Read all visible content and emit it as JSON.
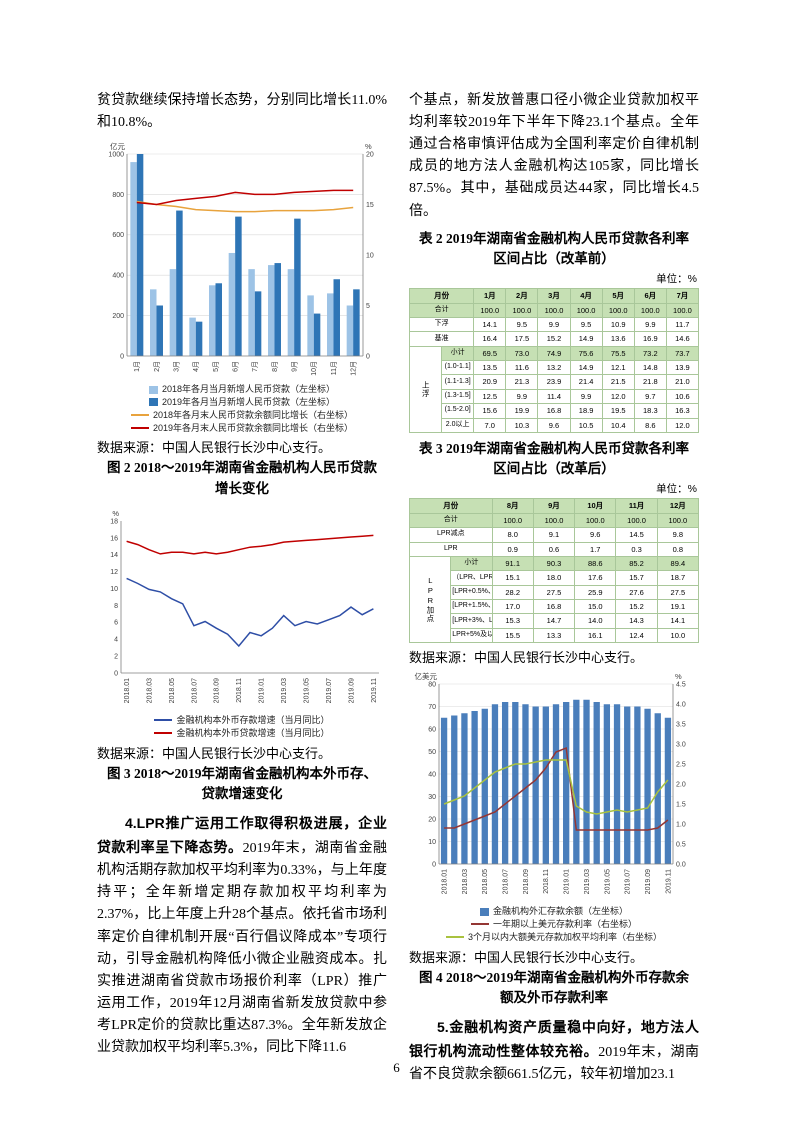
{
  "page_number": "6",
  "source_note": "数据来源：中国人民银行长沙中心支行。",
  "left": {
    "para_continued": "贫贷款继续保持增长态势，分别同比增长11.0%和10.8%。",
    "fig2_caption": "图 2  2018～2019年湖南省金融机构人民币贷款增长变化",
    "fig3_caption": "图 3  2018～2019年湖南省金融机构本外币存、贷款增速变化",
    "para4_lead": "4.LPR推广运用工作取得积极进展，企业贷款利率呈下降态势。",
    "para4_rest": "2019年末，湖南省金融机构活期存款加权平均利率为0.33%，与上年度持平；全年新增定期存款加权平均利率为2.37%，比上年度上升28个基点。依托省市场利率定价自律机制开展“百行倡议降成本”专项行动，引导金融机构降低小微企业融资成本。扎实推进湖南省贷款市场报价利率（LPR）推广运用工作，2019年12月湖南省新发放贷款中参考LPR定价的贷款比重达87.3%。全年新发放企业贷款加权平均利率5.3%，同比下降11.6"
  },
  "right": {
    "para_continued": "个基点，新发放普惠口径小微企业贷款加权平均利率较2019年下半年下降23.1个基点。全年通过合格审慎评估成为全国利率定价自律机制成员的地方法人金融机构达105家，同比增长87.5%。其中，基础成员达44家，同比增长4.5倍。",
    "fig4_caption": "图 4  2018～2019年湖南省金融机构外币存款余额及外币存款利率",
    "para5_lead": "5.金融机构资产质量稳中向好，地方法人银行机构流动性整体较充裕。",
    "para5_rest": "2019年末，湖南省不良贷款余额661.5亿元，较年初增加23.1"
  },
  "tables": {
    "table2": {
      "id": "table-rate-ranges-pre-reform",
      "title": "表 2  2019年湖南省金融机构人民币贷款各利率区间占比（改革前）",
      "unit": "单位：%",
      "header": [
        "月份",
        "1月",
        "2月",
        "3月",
        "4月",
        "5月",
        "6月",
        "7月"
      ],
      "rows": [
        {
          "label": "合计",
          "hl": true,
          "values": [
            "100.0",
            "100.0",
            "100.0",
            "100.0",
            "100.0",
            "100.0",
            "100.0"
          ]
        },
        {
          "label": "下浮",
          "values": [
            "14.1",
            "9.5",
            "9.9",
            "9.5",
            "10.9",
            "9.9",
            "11.7"
          ]
        },
        {
          "label": "基准",
          "values": [
            "16.4",
            "17.5",
            "15.2",
            "14.9",
            "13.6",
            "16.9",
            "14.6"
          ]
        },
        {
          "label": "小计",
          "hl": true,
          "group": "上浮",
          "group_span": 6,
          "values": [
            "69.5",
            "73.0",
            "74.9",
            "75.6",
            "75.5",
            "73.2",
            "73.7"
          ]
        },
        {
          "label": "(1.0-1.1]",
          "in_group": true,
          "values": [
            "13.5",
            "11.6",
            "13.2",
            "14.9",
            "12.1",
            "14.8",
            "13.9"
          ]
        },
        {
          "label": "(1.1-1.3]",
          "in_group": true,
          "values": [
            "20.9",
            "21.3",
            "23.9",
            "21.4",
            "21.5",
            "21.8",
            "21.0"
          ]
        },
        {
          "label": "(1.3-1.5]",
          "in_group": true,
          "values": [
            "12.5",
            "9.9",
            "11.4",
            "9.9",
            "12.0",
            "9.7",
            "10.6"
          ]
        },
        {
          "label": "(1.5-2.0]",
          "in_group": true,
          "values": [
            "15.6",
            "19.9",
            "16.8",
            "18.9",
            "19.5",
            "18.3",
            "16.3"
          ]
        },
        {
          "label": "2.0以上",
          "in_group": true,
          "values": [
            "7.0",
            "10.3",
            "9.6",
            "10.5",
            "10.4",
            "8.6",
            "12.0"
          ]
        }
      ]
    },
    "table3": {
      "id": "table-rate-ranges-post-reform",
      "title": "表 3  2019年湖南省金融机构人民币贷款各利率区间占比（改革后）",
      "unit": "单位：%",
      "header": [
        "月份",
        "8月",
        "9月",
        "10月",
        "11月",
        "12月"
      ],
      "rows": [
        {
          "label": "合计",
          "hl": true,
          "values": [
            "100.0",
            "100.0",
            "100.0",
            "100.0",
            "100.0"
          ]
        },
        {
          "label": "LPR减点",
          "values": [
            "8.0",
            "9.1",
            "9.6",
            "14.5",
            "9.8"
          ]
        },
        {
          "label": "LPR",
          "values": [
            "0.9",
            "0.6",
            "1.7",
            "0.3",
            "0.8"
          ]
        },
        {
          "label": "小计",
          "hl": true,
          "group": "LPR加点",
          "group_span": 6,
          "values": [
            "91.1",
            "90.3",
            "88.6",
            "85.2",
            "89.4"
          ]
        },
        {
          "label": "（LPR、LPR+0.5%]",
          "in_group": true,
          "values": [
            "15.1",
            "18.0",
            "17.6",
            "15.7",
            "18.7"
          ]
        },
        {
          "label": "[LPR+0.5%、LPR+1.5%)",
          "in_group": true,
          "values": [
            "28.2",
            "27.5",
            "25.9",
            "27.6",
            "27.5"
          ]
        },
        {
          "label": "[LPR+1.5%、LPR+3%)",
          "in_group": true,
          "values": [
            "17.0",
            "16.8",
            "15.0",
            "15.2",
            "19.1"
          ]
        },
        {
          "label": "[LPR+3%、LPR+5%)",
          "in_group": true,
          "values": [
            "15.3",
            "14.7",
            "14.0",
            "14.3",
            "14.1"
          ]
        },
        {
          "label": "LPR+5%及以上",
          "in_group": true,
          "values": [
            "15.5",
            "13.3",
            "16.1",
            "12.4",
            "10.0"
          ]
        }
      ]
    }
  },
  "chart_data": [
    {
      "id": "fig2",
      "type": "bar",
      "title": "2018～2019年湖南省金融机构人民币贷款增长变化",
      "grid": true,
      "categories": [
        "1月",
        "2月",
        "3月",
        "4月",
        "5月",
        "6月",
        "7月",
        "8月",
        "9月",
        "10月",
        "11月",
        "12月"
      ],
      "label_every": 1,
      "left_axis": {
        "label": "亿元",
        "min": 0,
        "max": 1000,
        "step": 200
      },
      "right_axis": {
        "label": "%",
        "min": 0,
        "max": 20,
        "step": 5
      },
      "bar_series": [
        {
          "name": "2018年各月当月新增人民币贷款（左坐标）",
          "color": "#9dc3e6",
          "values": [
            960,
            330,
            430,
            190,
            350,
            510,
            430,
            450,
            430,
            300,
            310,
            250
          ]
        },
        {
          "name": "2019年各月当月新增人民币贷款（左坐标）",
          "color": "#2e75b6",
          "values": [
            1000,
            250,
            720,
            170,
            360,
            690,
            320,
            460,
            680,
            210,
            380,
            330
          ]
        }
      ],
      "line_series": [
        {
          "name": "2018年各月末人民币贷款余额同比增长（右坐标）",
          "color": "#e8a33d",
          "values": [
            15.3,
            15.0,
            14.8,
            14.5,
            14.4,
            14.3,
            14.3,
            14.4,
            14.4,
            14.4,
            14.5,
            14.7
          ]
        },
        {
          "name": "2019年各月末人民币贷款余额同比增长（右坐标）",
          "color": "#c00000",
          "values": [
            15.2,
            15.0,
            15.4,
            15.6,
            15.8,
            16.2,
            16.0,
            16.0,
            16.2,
            16.3,
            16.4,
            16.4
          ]
        }
      ]
    },
    {
      "id": "fig3",
      "type": "line",
      "title": "2018～2019年湖南省金融机构本外币存、贷款增速变化",
      "grid": false,
      "categories": [
        "2018.01",
        "2018.02",
        "2018.03",
        "2018.04",
        "2018.05",
        "2018.06",
        "2018.07",
        "2018.08",
        "2018.09",
        "2018.10",
        "2018.11",
        "2018.12",
        "2019.01",
        "2019.02",
        "2019.03",
        "2019.04",
        "2019.05",
        "2019.06",
        "2019.07",
        "2019.08",
        "2019.09",
        "2019.10",
        "2019.11"
      ],
      "label_every": 2,
      "left_axis": {
        "label": "%",
        "min": 0,
        "max": 18,
        "step": 2
      },
      "right_axis": null,
      "bar_series": [],
      "line_series": [
        {
          "name": "金融机构本外币存款增速（当月同比）",
          "color": "#2e4ea6",
          "values": [
            11.2,
            10.6,
            9.9,
            9.6,
            8.8,
            8.2,
            5.6,
            6.1,
            5.3,
            4.6,
            3.2,
            4.8,
            4.4,
            5.3,
            6.8,
            5.6,
            6.1,
            5.8,
            6.3,
            6.8,
            7.8,
            6.9,
            7.6
          ]
        },
        {
          "name": "金融机构本外币贷款增速（当月同比）",
          "color": "#c00000",
          "values": [
            15.6,
            15.2,
            14.6,
            14.1,
            14.3,
            14.3,
            14.1,
            14.3,
            14.1,
            14.3,
            14.6,
            14.9,
            15.0,
            15.2,
            15.5,
            15.6,
            15.7,
            15.8,
            15.9,
            16.0,
            16.1,
            16.2,
            16.3
          ]
        }
      ]
    },
    {
      "id": "fig4",
      "type": "bar",
      "title": "2018～2019年湖南省金融机构外币存款余额及外币存款利率",
      "grid": true,
      "categories": [
        "2018.01",
        "2018.02",
        "2018.03",
        "2018.04",
        "2018.05",
        "2018.06",
        "2018.07",
        "2018.08",
        "2018.09",
        "2018.10",
        "2018.11",
        "2018.12",
        "2019.01",
        "2019.02",
        "2019.03",
        "2019.04",
        "2019.05",
        "2019.06",
        "2019.07",
        "2019.08",
        "2019.09",
        "2019.10",
        "2019.11"
      ],
      "label_every": 2,
      "left_axis": {
        "label": "亿美元",
        "min": 0,
        "max": 80,
        "step": 10
      },
      "right_axis": {
        "label": "%",
        "min": 0,
        "max": 4.5,
        "step": 0.5
      },
      "bar_series": [
        {
          "name": "金融机构外汇存款余额（左坐标）",
          "color": "#4a7ebb",
          "values": [
            65,
            66,
            67,
            68,
            69,
            71,
            72,
            72,
            71,
            70,
            70,
            71,
            72,
            73,
            73,
            72,
            71,
            71,
            70,
            70,
            69,
            67,
            65
          ]
        }
      ],
      "line_series": [
        {
          "name": "一年期以上美元存款利率（右坐标）",
          "color": "#943634",
          "values": [
            0.9,
            0.9,
            1.0,
            1.1,
            1.2,
            1.3,
            1.5,
            1.7,
            1.9,
            2.1,
            2.4,
            2.8,
            2.9,
            0.85,
            0.85,
            0.85,
            0.85,
            0.85,
            0.85,
            0.85,
            0.85,
            0.9,
            1.1
          ]
        },
        {
          "name": "3个月以内大额美元存款加权平均利率（右坐标）",
          "color": "#a9c23f",
          "values": [
            1.5,
            1.6,
            1.7,
            1.9,
            2.1,
            2.3,
            2.4,
            2.5,
            2.5,
            2.55,
            2.6,
            2.6,
            2.6,
            1.45,
            1.3,
            1.25,
            1.3,
            1.35,
            1.3,
            1.35,
            1.4,
            1.8,
            2.1
          ]
        }
      ]
    }
  ]
}
